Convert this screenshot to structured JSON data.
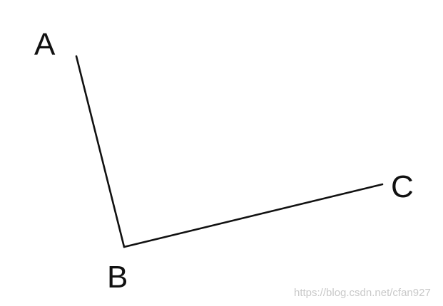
{
  "diagram": {
    "points": [
      {
        "id": "A",
        "label": "A"
      },
      {
        "id": "B",
        "label": "B"
      },
      {
        "id": "C",
        "label": "C"
      }
    ],
    "segments": [
      {
        "from": "A",
        "to": "B"
      },
      {
        "from": "B",
        "to": "C"
      }
    ],
    "stroke_color": "#111111"
  },
  "watermark": {
    "text": "https://blog.csdn.net/cfan927"
  }
}
